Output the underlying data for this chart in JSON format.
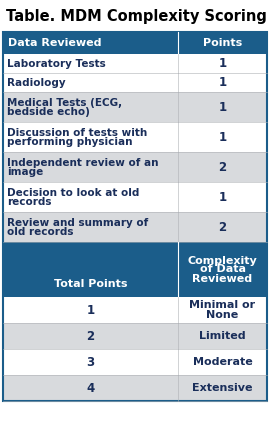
{
  "title": "Table. MDM Complexity Scoring",
  "title_fontsize": 10.5,
  "header_color": "#1b5d8a",
  "alt_row_color": "#d8dadd",
  "white_row_color": "#ffffff",
  "header_text_color": "#ffffff",
  "body_text_color": "#1a2e5a",
  "top_rows": [
    {
      "label": "Laboratory Tests",
      "points": "1",
      "shade": false
    },
    {
      "label": "Radiology",
      "points": "1",
      "shade": false
    },
    {
      "label": "Medical Tests (ECG,\nbedside echo)",
      "points": "1",
      "shade": true
    },
    {
      "label": "Discussion of tests with\nperforming physician",
      "points": "1",
      "shade": false
    },
    {
      "label": "Independent review of an\nimage",
      "points": "2",
      "shade": true
    },
    {
      "label": "Decision to look at old\nrecords",
      "points": "1",
      "shade": false
    },
    {
      "label": "Review and summary of\nold records",
      "points": "2",
      "shade": true
    }
  ],
  "bottom_header_col1": "Total Points",
  "bottom_header_col2": "Complexity\nof Data\nReviewed",
  "bottom_rows": [
    {
      "points": "1",
      "complexity": "Minimal or\nNone",
      "shade": false
    },
    {
      "points": "2",
      "complexity": "Limited",
      "shade": true
    },
    {
      "points": "3",
      "complexity": "Moderate",
      "shade": false
    },
    {
      "points": "4",
      "complexity": "Extensive",
      "shade": true
    }
  ]
}
